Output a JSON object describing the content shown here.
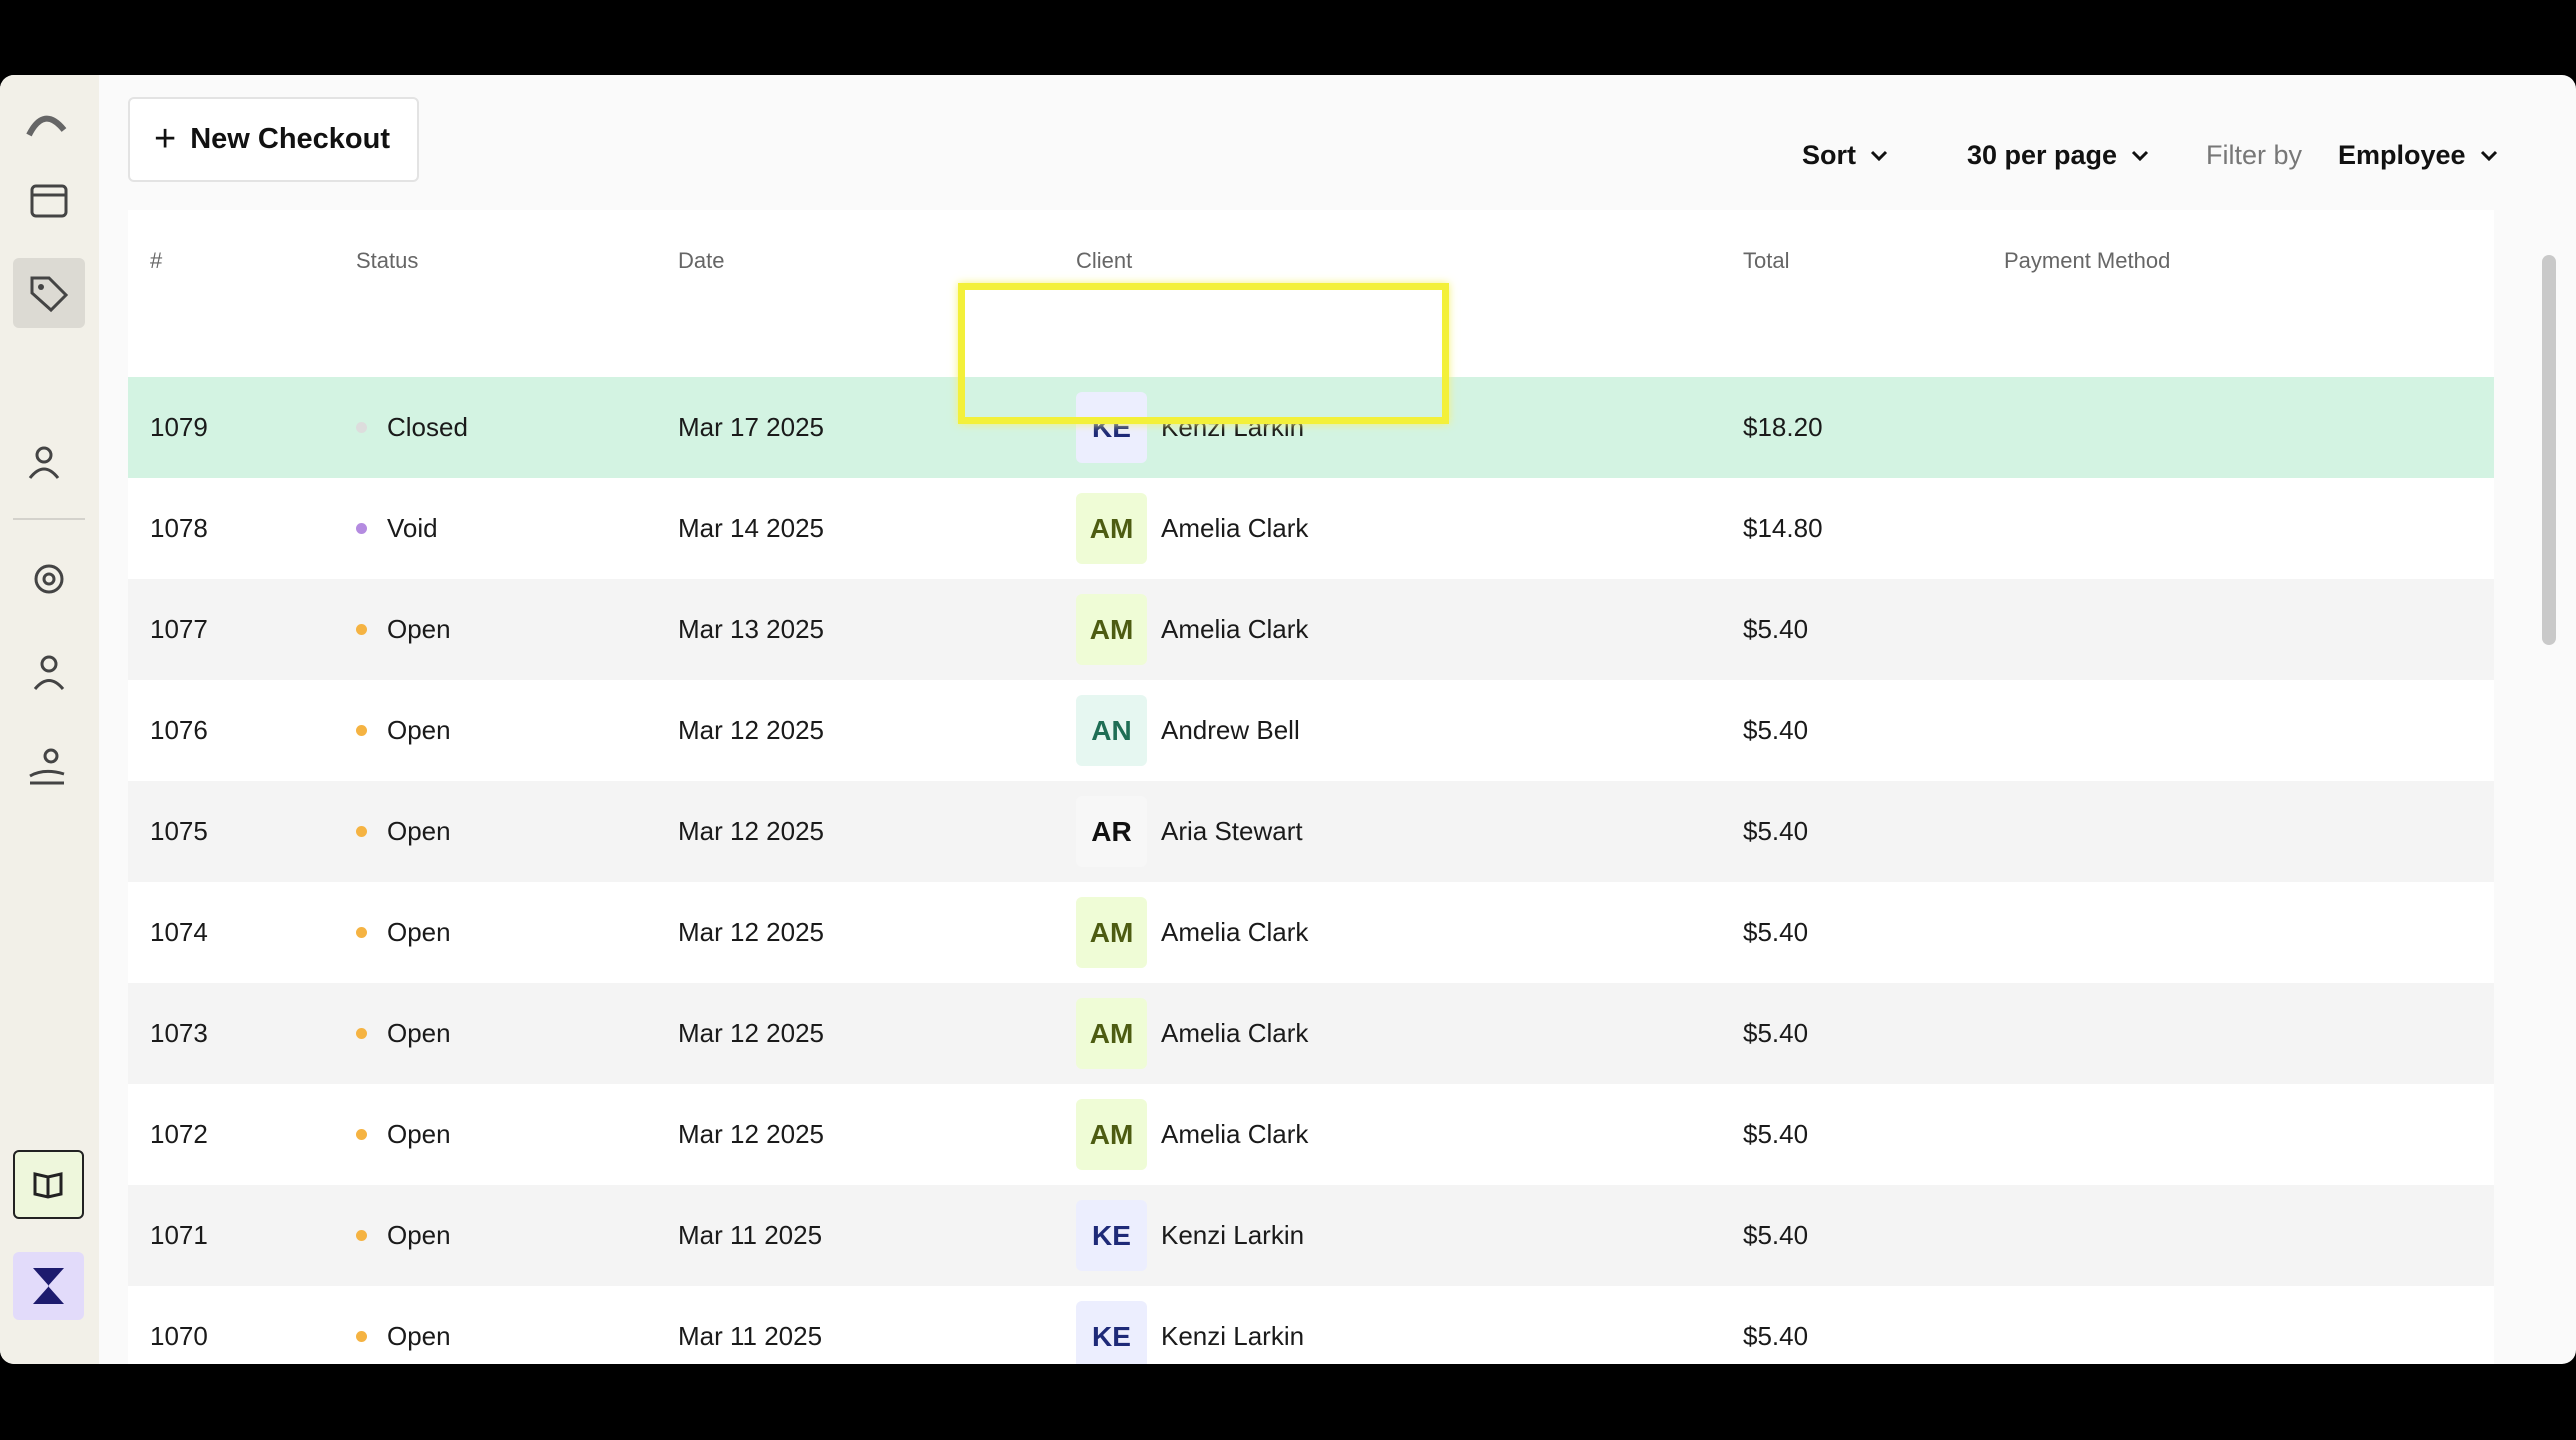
{
  "toolbar": {
    "new_button": "New Checkout",
    "sort": "Sort",
    "per_page": "30 per page",
    "filter_label": "Filter by",
    "filter_value": "Employee"
  },
  "table": {
    "headers": [
      "#",
      "Status",
      "Date",
      "Client",
      "Total",
      "Payment Method"
    ],
    "rows": [
      {
        "id": "1079",
        "status": "Closed",
        "status_color": "#dddddd",
        "date": "Mar 17 2025",
        "initials": "KE",
        "avatar_bg": "#eceefe",
        "avatar_fg": "#1e2a78",
        "client": "Kenzi Larkin",
        "total": "$18.20"
      },
      {
        "id": "1078",
        "status": "Void",
        "status_color": "#b48be0",
        "date": "Mar 14 2025",
        "initials": "AM",
        "avatar_bg": "#effcd6",
        "avatar_fg": "#4d5c12",
        "client": "Amelia Clark",
        "total": "$14.80"
      },
      {
        "id": "1077",
        "status": "Open",
        "status_color": "#f5b342",
        "date": "Mar 13 2025",
        "initials": "AM",
        "avatar_bg": "#effcd6",
        "avatar_fg": "#4d5c12",
        "client": "Amelia Clark",
        "total": "$5.40"
      },
      {
        "id": "1076",
        "status": "Open",
        "status_color": "#f5b342",
        "date": "Mar 12 2025",
        "initials": "AN",
        "avatar_bg": "#e6f7f1",
        "avatar_fg": "#1f6e55",
        "client": "Andrew Bell",
        "total": "$5.40"
      },
      {
        "id": "1075",
        "status": "Open",
        "status_color": "#f5b342",
        "date": "Mar 12 2025",
        "initials": "AR",
        "avatar_bg": "#f7f7f7",
        "avatar_fg": "#111111",
        "client": "Aria Stewart",
        "total": "$5.40"
      },
      {
        "id": "1074",
        "status": "Open",
        "status_color": "#f5b342",
        "date": "Mar 12 2025",
        "initials": "AM",
        "avatar_bg": "#effcd6",
        "avatar_fg": "#4d5c12",
        "client": "Amelia Clark",
        "total": "$5.40"
      },
      {
        "id": "1073",
        "status": "Open",
        "status_color": "#f5b342",
        "date": "Mar 12 2025",
        "initials": "AM",
        "avatar_bg": "#effcd6",
        "avatar_fg": "#4d5c12",
        "client": "Amelia Clark",
        "total": "$5.40"
      },
      {
        "id": "1072",
        "status": "Open",
        "status_color": "#f5b342",
        "date": "Mar 12 2025",
        "initials": "AM",
        "avatar_bg": "#effcd6",
        "avatar_fg": "#4d5c12",
        "client": "Amelia Clark",
        "total": "$5.40"
      },
      {
        "id": "1071",
        "status": "Open",
        "status_color": "#f5b342",
        "date": "Mar 11 2025",
        "initials": "KE",
        "avatar_bg": "#eceefe",
        "avatar_fg": "#1e2a78",
        "client": "Kenzi Larkin",
        "total": "$5.40"
      },
      {
        "id": "1070",
        "status": "Open",
        "status_color": "#f5b342",
        "date": "Mar 11 2025",
        "initials": "KE",
        "avatar_bg": "#eceefe",
        "avatar_fg": "#1e2a78",
        "client": "Kenzi Larkin",
        "total": "$5.40"
      }
    ]
  }
}
